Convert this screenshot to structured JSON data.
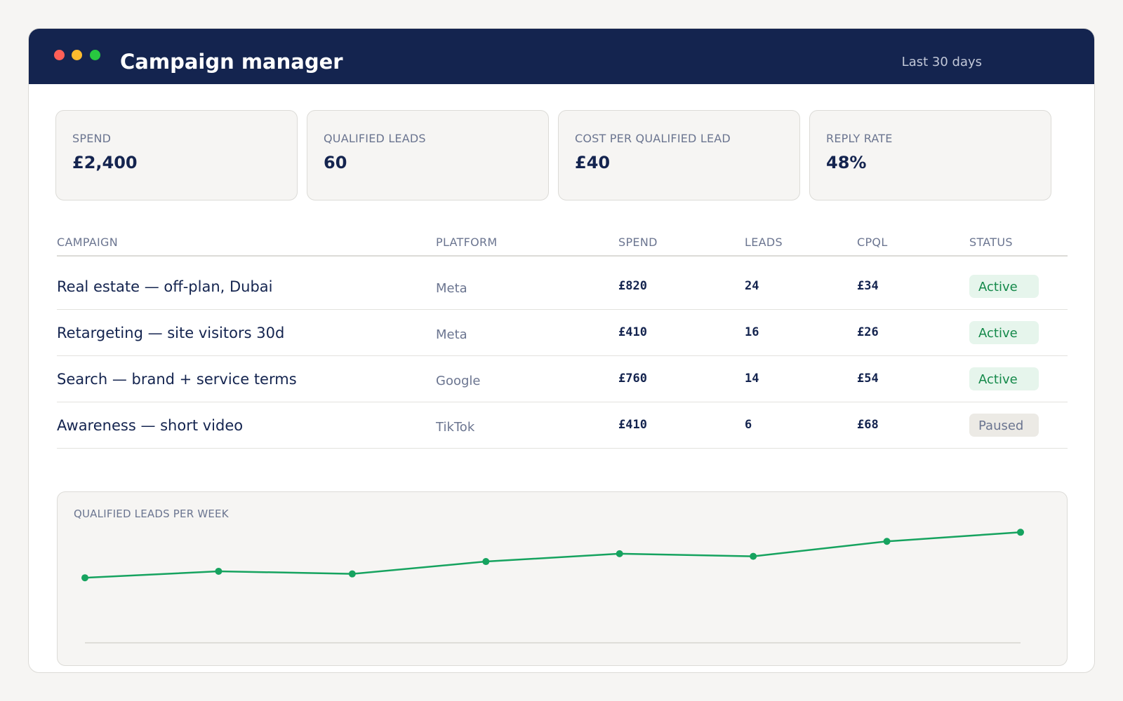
{
  "window": {
    "title": "Campaign manager",
    "date_range": "Last 30 days"
  },
  "kpis": [
    {
      "label": "SPEND",
      "value": "£2,400"
    },
    {
      "label": "QUALIFIED LEADS",
      "value": "60"
    },
    {
      "label": "COST PER QUALIFIED LEAD",
      "value": "£40"
    },
    {
      "label": "REPLY RATE",
      "value": "48%"
    }
  ],
  "table": {
    "columns": [
      "CAMPAIGN",
      "PLATFORM",
      "SPEND",
      "LEADS",
      "CPQL",
      "STATUS"
    ],
    "rows": [
      {
        "campaign": "Real estate — off-plan, Dubai",
        "platform": "Meta",
        "spend": "£820",
        "leads": "24",
        "cpql": "£34",
        "status": "Active"
      },
      {
        "campaign": "Retargeting — site visitors 30d",
        "platform": "Meta",
        "spend": "£410",
        "leads": "16",
        "cpql": "£26",
        "status": "Active"
      },
      {
        "campaign": "Search — brand + service terms",
        "platform": "Google",
        "spend": "£760",
        "leads": "14",
        "cpql": "£54",
        "status": "Active"
      },
      {
        "campaign": "Awareness — short video",
        "platform": "TikTok",
        "spend": "£410",
        "leads": "6",
        "cpql": "£68",
        "status": "Paused"
      }
    ]
  },
  "colors": {
    "header_bg": "#14244f",
    "accent_green": "#16a35f",
    "active_badge_bg": "#e6f5ec",
    "active_badge_text": "#14894a",
    "paused_badge_bg": "#eceae5"
  },
  "chart_data": {
    "type": "line",
    "title": "QUALIFIED LEADS PER WEEK",
    "x": [
      1,
      2,
      3,
      4,
      5,
      6,
      7,
      8
    ],
    "values": [
      10,
      11,
      10.6,
      12.5,
      13.7,
      13.3,
      15.6,
      17
    ],
    "ylim": [
      0,
      18
    ],
    "grid": false,
    "legend": "none"
  }
}
